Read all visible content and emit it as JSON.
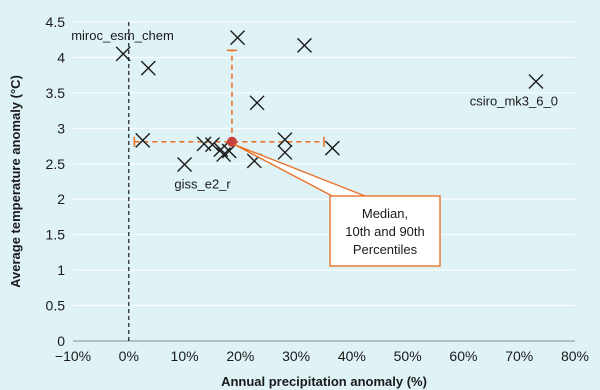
{
  "chart_data": {
    "type": "scatter",
    "xlabel": "Annual precipitation anomaly (%)",
    "ylabel": "Average temperature anomaly (°C)",
    "xlim": [
      -10,
      80
    ],
    "ylim": [
      0,
      4.5
    ],
    "x_ticks": [
      "−10%",
      "0%",
      "10%",
      "20%",
      "30%",
      "40%",
      "50%",
      "60%",
      "70%",
      "80%"
    ],
    "y_ticks": [
      "0",
      "0.5",
      "1",
      "1.5",
      "2",
      "2.5",
      "3",
      "3.5",
      "4",
      "4.5"
    ],
    "grid": "horizontal",
    "colors": {
      "background": "#dff2f6",
      "grid": "#ffffff",
      "marker": "#1a1a1a",
      "percentile": "#e8742a",
      "median": "#c8423c",
      "zero_line": "#1a1a1a"
    },
    "points": [
      {
        "x": -1,
        "y": 4.05,
        "label": "miroc_esm_chem"
      },
      {
        "x": 3.5,
        "y": 3.85
      },
      {
        "x": 19.5,
        "y": 4.28
      },
      {
        "x": 31.5,
        "y": 4.17
      },
      {
        "x": 23,
        "y": 3.36
      },
      {
        "x": 73,
        "y": 3.66,
        "label": "csiro_mk3_6_0"
      },
      {
        "x": 2.5,
        "y": 2.83
      },
      {
        "x": 13.5,
        "y": 2.78
      },
      {
        "x": 15,
        "y": 2.77
      },
      {
        "x": 16.5,
        "y": 2.7
      },
      {
        "x": 17,
        "y": 2.63
      },
      {
        "x": 18,
        "y": 2.68
      },
      {
        "x": 22.5,
        "y": 2.54
      },
      {
        "x": 28,
        "y": 2.84
      },
      {
        "x": 28,
        "y": 2.66
      },
      {
        "x": 36.5,
        "y": 2.72
      },
      {
        "x": 10,
        "y": 2.49,
        "label": "giss_e2_r"
      }
    ],
    "median": {
      "x": 18.5,
      "y": 2.81
    },
    "percentiles": {
      "x_p10": 1,
      "x_p90": 35,
      "y_p10": 2.81,
      "y_p90": 4.1
    },
    "zero_line_x": 0,
    "annotation": [
      "Median,",
      "10th and 90th",
      "Percentiles"
    ]
  }
}
